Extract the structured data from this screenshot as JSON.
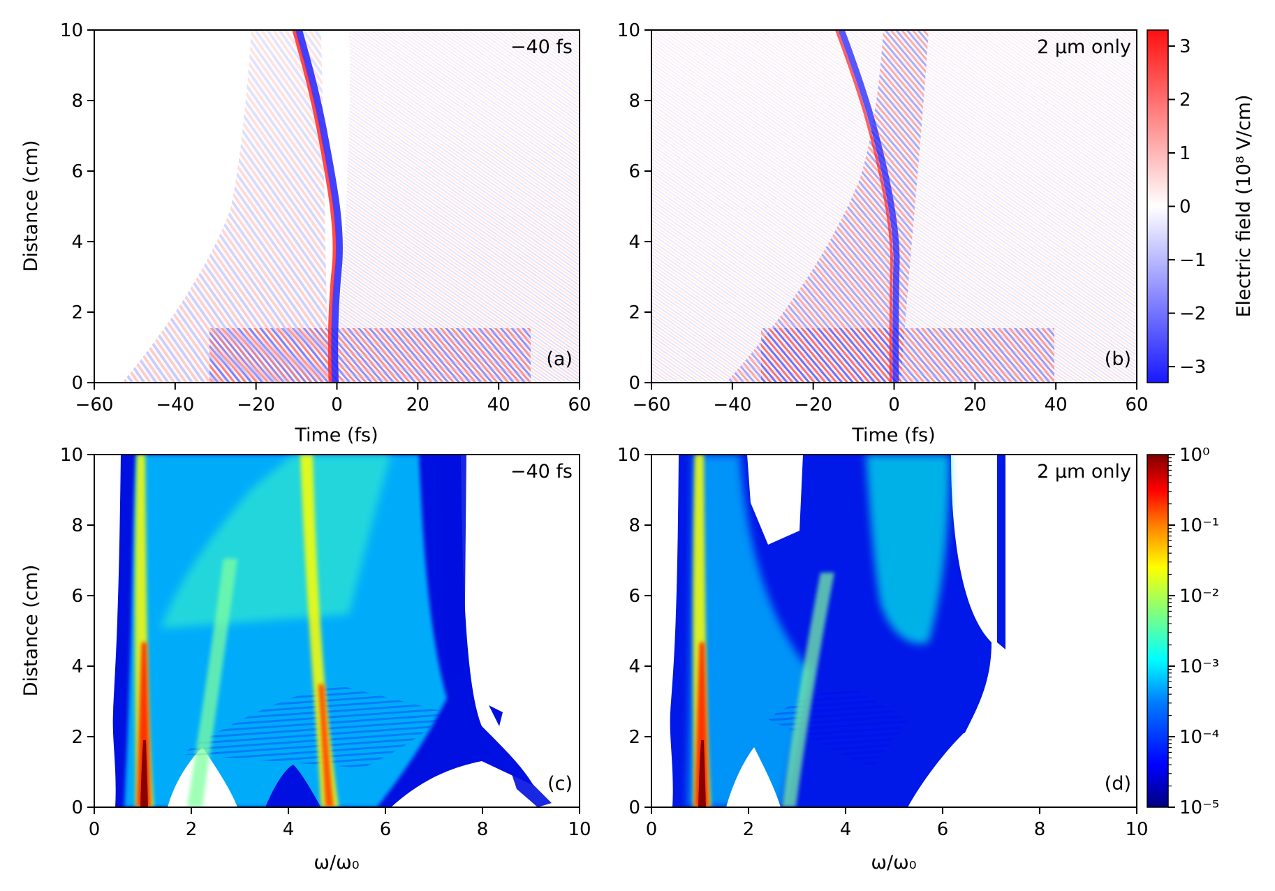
{
  "colors": {
    "field_low": "#1818ff",
    "field_mid": "#ffffff",
    "field_high": "#ff1010",
    "jet": [
      "#00007f",
      "#0000ff",
      "#007fff",
      "#00ffff",
      "#7fff7f",
      "#ffff00",
      "#ff7f00",
      "#ff0000",
      "#7f0000"
    ]
  },
  "chart_data": [
    {
      "panel": "(a)",
      "type": "heatmap",
      "corner_label": "−40 fs",
      "xlabel": "Time (fs)",
      "ylabel": "Distance (cm)",
      "xlim": [
        -60,
        60
      ],
      "ylim": [
        0,
        10
      ],
      "xticks": [
        -60,
        -40,
        -20,
        0,
        20,
        40,
        60
      ],
      "xtick_labels": [
        "−60",
        "−40",
        "−20",
        "0",
        "20",
        "40",
        "60"
      ],
      "yticks": [
        0,
        2,
        4,
        6,
        8,
        10
      ],
      "ytick_labels": [
        "0",
        "2",
        "4",
        "6",
        "8",
        "10"
      ],
      "colormap": "bwr",
      "value_range": [
        -3.3,
        3.3
      ],
      "features": {
        "main_pulse_trajectory": [
          [
            0,
            0
          ],
          [
            0,
            2
          ],
          [
            1,
            4
          ],
          [
            -2,
            6
          ],
          [
            -5,
            8
          ],
          [
            -9,
            10
          ]
        ],
        "early_pulse_front": [
          [
            -55,
            0
          ],
          [
            -40,
            2
          ],
          [
            -28,
            4
          ],
          [
            -22,
            6
          ],
          [
            -18,
            8
          ],
          [
            -15,
            10
          ]
        ],
        "peak_field": 3.2
      }
    },
    {
      "panel": "(b)",
      "type": "heatmap",
      "corner_label": "2 μm only",
      "xlabel": "Time (fs)",
      "ylabel": "",
      "xlim": [
        -60,
        60
      ],
      "ylim": [
        0,
        10
      ],
      "xticks": [
        -60,
        -40,
        -20,
        0,
        20,
        40,
        60
      ],
      "xtick_labels": [
        "−60",
        "−40",
        "−20",
        "0",
        "20",
        "40",
        "60"
      ],
      "yticks": [
        0,
        2,
        4,
        6,
        8,
        10
      ],
      "ytick_labels": [
        "0",
        "2",
        "4",
        "6",
        "8",
        "10"
      ],
      "colormap": "bwr",
      "value_range": [
        -3.3,
        3.3
      ],
      "features": {
        "main_pulse_trajectory": [
          [
            1,
            0
          ],
          [
            1,
            2
          ],
          [
            1,
            4
          ],
          [
            -2,
            6
          ],
          [
            -7,
            8
          ],
          [
            -12,
            10
          ]
        ],
        "peak_field": 2.6
      },
      "colorbar": {
        "label": "Electric field (10⁸ V/cm)",
        "ticks": [
          -3,
          -2,
          -1,
          0,
          1,
          2,
          3
        ],
        "tick_labels": [
          "−3",
          "−2",
          "−1",
          "0",
          "1",
          "2",
          "3"
        ],
        "range": [
          -3.3,
          3.3
        ]
      }
    },
    {
      "panel": "(c)",
      "type": "heatmap",
      "corner_label": "−40 fs",
      "xlabel": "ω/ω₀",
      "ylabel": "Distance (cm)",
      "xlim": [
        0,
        10
      ],
      "ylim": [
        0,
        10
      ],
      "xticks": [
        0,
        2,
        4,
        6,
        8,
        10
      ],
      "xtick_labels": [
        "0",
        "2",
        "4",
        "6",
        "8",
        "10"
      ],
      "yticks": [
        0,
        2,
        4,
        6,
        8,
        10
      ],
      "ytick_labels": [
        "0",
        "2",
        "4",
        "6",
        "8",
        "10"
      ],
      "colormap": "jet",
      "scale": "log",
      "features": {
        "harmonic_peaks": [
          1,
          3,
          5
        ],
        "strong_bands": [
          1,
          5
        ],
        "cutoff_curve": [
          [
            0.6,
            0
          ],
          [
            8.0,
            10
          ]
        ],
        "peak_intensity": 0.3
      }
    },
    {
      "panel": "(d)",
      "type": "heatmap",
      "corner_label": "2 μm only",
      "xlabel": "ω/ω₀",
      "ylabel": "",
      "xlim": [
        0,
        10
      ],
      "ylim": [
        0,
        10
      ],
      "xticks": [
        0,
        2,
        4,
        6,
        8,
        10
      ],
      "xtick_labels": [
        "0",
        "2",
        "4",
        "6",
        "8",
        "10"
      ],
      "yticks": [
        0,
        2,
        4,
        6,
        8,
        10
      ],
      "ytick_labels": [
        "0",
        "2",
        "4",
        "6",
        "8",
        "10"
      ],
      "colormap": "jet",
      "scale": "log",
      "features": {
        "harmonic_peaks": [
          1,
          3,
          5
        ],
        "strong_bands": [
          1
        ],
        "cutoff_curve": [
          [
            0.6,
            0
          ],
          [
            7.3,
            10
          ]
        ],
        "peak_intensity": 0.3
      },
      "colorbar": {
        "label": "",
        "scale": "log",
        "range": [
          1e-05,
          1
        ],
        "tick_labels": [
          "10⁰",
          "10⁻¹",
          "10⁻²",
          "10⁻³",
          "10⁻⁴",
          "10⁻⁵"
        ]
      }
    }
  ],
  "panel_labels": {
    "a": "(a)",
    "b": "(b)",
    "c": "(c)",
    "d": "(d)"
  }
}
